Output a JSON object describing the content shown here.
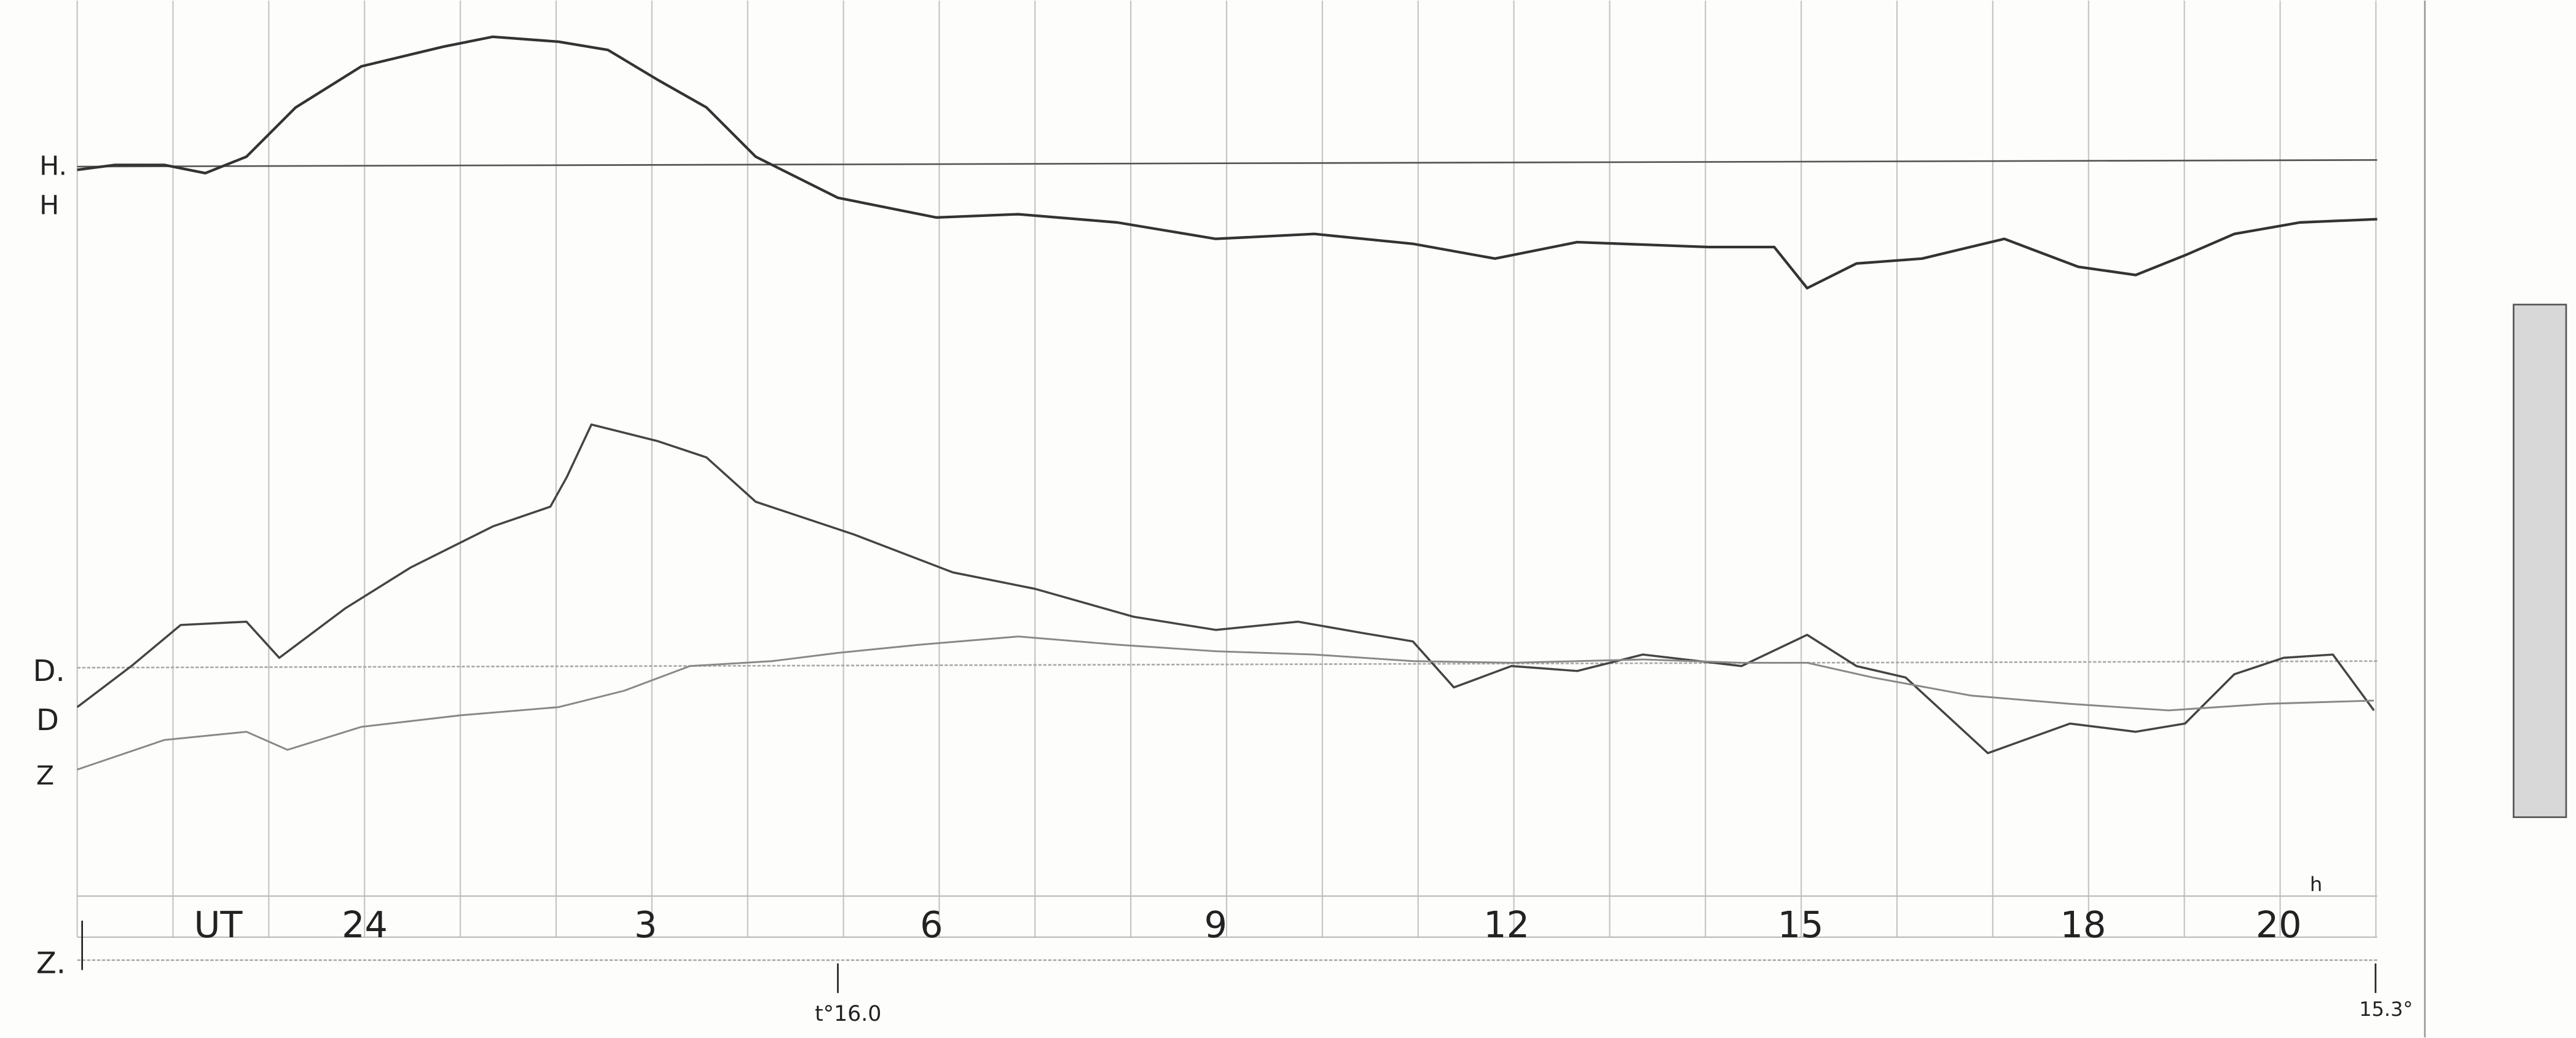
{
  "labels": {
    "h_base": "H.",
    "h": "H",
    "d_base": "D.",
    "d": "D",
    "z": "Z",
    "z_base": "Z."
  },
  "time_axis": {
    "label": "UT",
    "ticks": [
      "24",
      "3",
      "6",
      "9",
      "12",
      "15",
      "18",
      "20"
    ],
    "unit": "h"
  },
  "temperatures": {
    "start": "t°16.0",
    "end": "15.3°"
  }
}
